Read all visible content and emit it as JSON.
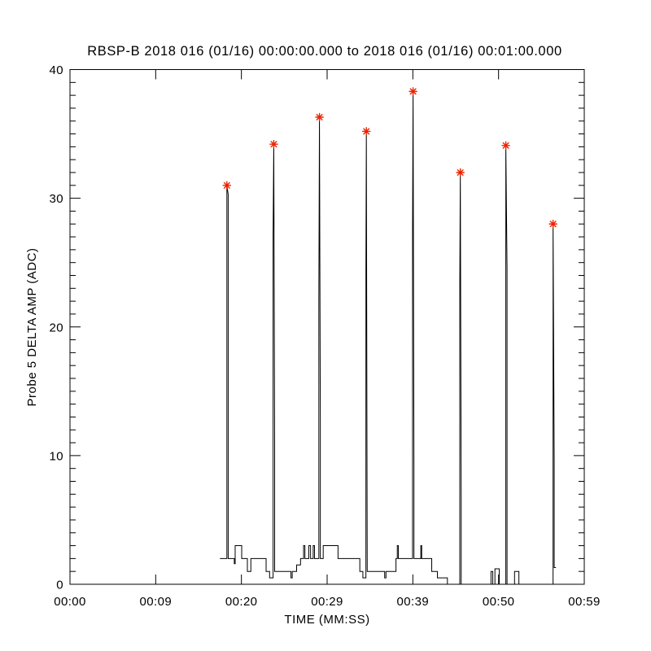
{
  "window": {
    "background": "#ffffff",
    "foreground": "#000000"
  },
  "chart": {
    "title": "RBSP-B 2018 016 (01/16) 00:00:00.000 to 2018 016 (01/16) 00:01:00.000",
    "xlabel": "TIME (MM:SS)",
    "ylabel": "Probe 5 DELTA AMP (ADC)"
  },
  "chart_data": {
    "type": "line",
    "title": "RBSP-B 2018 016 (01/16) 00:00:00.000 to 2018 016 (01/16) 00:01:00.000",
    "xlabel": "TIME (MM:SS)",
    "ylabel": "Probe 5 DELTA AMP (ADC)",
    "x_axis": {
      "min": 0,
      "max": 59,
      "tick_labels": [
        "00:00",
        "00:09",
        "00:20",
        "00:29",
        "00:39",
        "00:50",
        "00:59"
      ],
      "minor_ticks": false
    },
    "y_axis": {
      "min": 0,
      "max": 40,
      "major_ticks": [
        0,
        10,
        20,
        30,
        40
      ],
      "minor_tick_step": 1
    },
    "grid": false,
    "legend": "none",
    "line_color": "#000000",
    "marker": {
      "symbol": "asterisk",
      "color": "#ee2200"
    },
    "series": [
      {
        "name": "Probe 5 DELTA AMP",
        "units": "ADC",
        "points": [
          [
            17.2,
            2
          ],
          [
            18.0,
            2
          ],
          [
            18.0,
            31
          ],
          [
            18.15,
            30.3
          ],
          [
            18.15,
            2
          ],
          [
            18.85,
            2
          ],
          [
            18.85,
            1.6
          ],
          [
            18.95,
            1.6
          ],
          [
            18.95,
            3
          ],
          [
            19.7,
            3
          ],
          [
            19.7,
            2
          ],
          [
            20.35,
            2
          ],
          [
            20.35,
            1
          ],
          [
            20.75,
            1
          ],
          [
            20.75,
            2
          ],
          [
            22.5,
            2
          ],
          [
            22.5,
            1
          ],
          [
            22.9,
            1
          ],
          [
            22.9,
            0.5
          ],
          [
            23.3,
            0.5
          ],
          [
            23.3,
            27.1
          ],
          [
            23.38,
            34.2
          ],
          [
            23.48,
            10.6
          ],
          [
            23.48,
            1
          ],
          [
            25.35,
            1
          ],
          [
            25.35,
            0.5
          ],
          [
            25.5,
            0.5
          ],
          [
            25.5,
            1
          ],
          [
            26.0,
            1
          ],
          [
            26.0,
            1.5
          ],
          [
            26.45,
            1.5
          ],
          [
            26.45,
            2
          ],
          [
            26.8,
            2
          ],
          [
            26.8,
            3
          ],
          [
            26.95,
            3
          ],
          [
            26.95,
            2
          ],
          [
            27.4,
            2
          ],
          [
            27.4,
            3
          ],
          [
            27.6,
            3
          ],
          [
            27.6,
            2
          ],
          [
            27.9,
            2
          ],
          [
            27.9,
            3
          ],
          [
            28.05,
            3
          ],
          [
            28.05,
            2
          ],
          [
            28.55,
            2
          ],
          [
            28.55,
            22
          ],
          [
            28.62,
            36.3
          ],
          [
            28.72,
            12.6
          ],
          [
            28.72,
            2
          ],
          [
            29.05,
            2
          ],
          [
            29.05,
            3
          ],
          [
            30.75,
            3
          ],
          [
            30.75,
            2
          ],
          [
            33.25,
            2
          ],
          [
            33.25,
            1
          ],
          [
            33.6,
            1
          ],
          [
            33.6,
            0.5
          ],
          [
            33.95,
            0.5
          ],
          [
            33.95,
            24.4
          ],
          [
            34.0,
            35.2
          ],
          [
            34.1,
            1
          ],
          [
            36.1,
            1
          ],
          [
            36.1,
            0.5
          ],
          [
            36.25,
            0.5
          ],
          [
            36.25,
            1
          ],
          [
            37.4,
            1
          ],
          [
            37.4,
            2
          ],
          [
            37.55,
            2
          ],
          [
            37.55,
            3
          ],
          [
            37.67,
            3
          ],
          [
            37.67,
            2
          ],
          [
            39.3,
            2
          ],
          [
            39.3,
            27.5
          ],
          [
            39.36,
            38.3
          ],
          [
            39.46,
            9
          ],
          [
            39.46,
            2
          ],
          [
            40.25,
            2
          ],
          [
            40.25,
            3
          ],
          [
            40.35,
            3
          ],
          [
            40.35,
            2
          ],
          [
            41.5,
            2
          ],
          [
            41.5,
            1
          ],
          [
            42.15,
            1
          ],
          [
            42.15,
            0.5
          ],
          [
            43.3,
            0.5
          ],
          [
            43.3,
            0
          ],
          [
            44.72,
            0
          ],
          [
            44.72,
            23.4
          ],
          [
            44.78,
            32
          ],
          [
            44.88,
            7.2
          ],
          [
            44.88,
            0
          ],
          [
            48.3,
            0
          ],
          [
            48.3,
            1
          ],
          [
            48.5,
            1
          ],
          [
            48.5,
            0
          ],
          [
            48.75,
            0
          ],
          [
            48.75,
            1.2
          ],
          [
            49.25,
            1.2
          ],
          [
            49.25,
            0
          ],
          [
            50.0,
            0
          ],
          [
            50.0,
            34.1
          ],
          [
            50.14,
            24.6
          ],
          [
            50.14,
            0
          ],
          [
            51.0,
            0
          ],
          [
            51.0,
            1
          ],
          [
            51.5,
            1
          ],
          [
            51.5,
            0
          ],
          [
            55.42,
            0
          ],
          [
            55.42,
            28
          ],
          [
            55.55,
            9.5
          ],
          [
            55.55,
            1.3
          ],
          [
            55.75,
            1.3
          ]
        ]
      }
    ],
    "peak_markers": [
      [
        18.0,
        31.0
      ],
      [
        23.38,
        34.2
      ],
      [
        28.62,
        36.3
      ],
      [
        34.0,
        35.2
      ],
      [
        39.36,
        38.3
      ],
      [
        44.78,
        32.0
      ],
      [
        50.0,
        34.1
      ],
      [
        55.42,
        28.0
      ]
    ]
  }
}
